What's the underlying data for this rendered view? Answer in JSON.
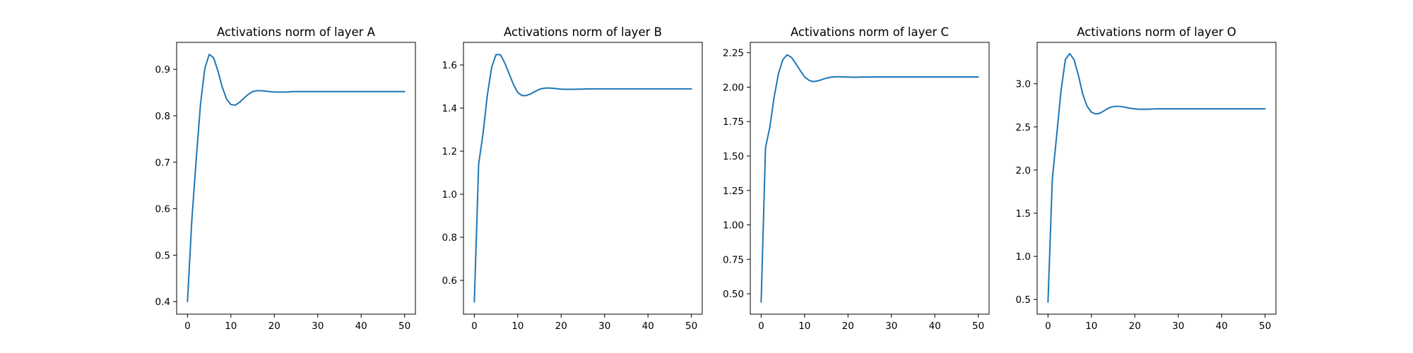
{
  "colors": {
    "background": "#ffffff",
    "series": "#1f77b4",
    "axes": "#000000"
  },
  "chart_data": [
    {
      "type": "line",
      "title": "Activations norm of layer A",
      "xlabel": "",
      "ylabel": "",
      "xlim": [
        -2.5,
        52.5
      ],
      "ylim": [
        0.373,
        0.958
      ],
      "x_ticks": [
        0,
        10,
        20,
        30,
        40,
        50
      ],
      "y_ticks": [
        0.4,
        0.5,
        0.6,
        0.7,
        0.8,
        0.9
      ],
      "y_tick_labels": [
        "0.4",
        "0.5",
        "0.6",
        "0.7",
        "0.8",
        "0.9"
      ],
      "grid": false,
      "series": [
        {
          "x": [
            0,
            1,
            2,
            3,
            4,
            5,
            6,
            7,
            8,
            9,
            10,
            11,
            12,
            13,
            14,
            15,
            16,
            17,
            18,
            19,
            20,
            21,
            22,
            23,
            24,
            25,
            26,
            27,
            28,
            29,
            30,
            31,
            32,
            33,
            34,
            35,
            36,
            37,
            38,
            39,
            40,
            41,
            42,
            43,
            44,
            45,
            46,
            47,
            48,
            49,
            50
          ],
          "y": [
            0.4,
            0.575,
            0.705,
            0.825,
            0.902,
            0.932,
            0.925,
            0.897,
            0.862,
            0.836,
            0.824,
            0.823,
            0.829,
            0.838,
            0.846,
            0.852,
            0.854,
            0.854,
            0.853,
            0.852,
            0.851,
            0.851,
            0.851,
            0.851,
            0.852,
            0.852,
            0.852,
            0.852,
            0.852,
            0.852,
            0.852,
            0.852,
            0.852,
            0.852,
            0.852,
            0.852,
            0.852,
            0.852,
            0.852,
            0.852,
            0.852,
            0.852,
            0.852,
            0.852,
            0.852,
            0.852,
            0.852,
            0.852,
            0.852,
            0.852,
            0.852
          ]
        }
      ]
    },
    {
      "type": "line",
      "title": "Activations norm of layer B",
      "xlabel": "",
      "ylabel": "",
      "xlim": [
        -2.5,
        52.5
      ],
      "ylim": [
        0.443,
        1.705
      ],
      "x_ticks": [
        0,
        10,
        20,
        30,
        40,
        50
      ],
      "y_ticks": [
        0.6,
        0.8,
        1.0,
        1.2,
        1.4,
        1.6
      ],
      "y_tick_labels": [
        "0.6",
        "0.8",
        "1.0",
        "1.2",
        "1.4",
        "1.6"
      ],
      "grid": false,
      "series": [
        {
          "x": [
            0,
            1,
            2,
            3,
            4,
            5,
            6,
            7,
            8,
            9,
            10,
            11,
            12,
            13,
            14,
            15,
            16,
            17,
            18,
            19,
            20,
            21,
            22,
            23,
            24,
            25,
            26,
            27,
            28,
            29,
            30,
            31,
            32,
            33,
            34,
            35,
            36,
            37,
            38,
            39,
            40,
            41,
            42,
            43,
            44,
            45,
            46,
            47,
            48,
            49,
            50
          ],
          "y": [
            0.5,
            1.14,
            1.28,
            1.46,
            1.59,
            1.648,
            1.648,
            1.61,
            1.56,
            1.51,
            1.472,
            1.458,
            1.458,
            1.466,
            1.477,
            1.487,
            1.492,
            1.493,
            1.492,
            1.49,
            1.488,
            1.487,
            1.487,
            1.487,
            1.488,
            1.488,
            1.489,
            1.489,
            1.489,
            1.489,
            1.489,
            1.489,
            1.489,
            1.489,
            1.489,
            1.489,
            1.489,
            1.489,
            1.489,
            1.489,
            1.489,
            1.489,
            1.489,
            1.489,
            1.489,
            1.489,
            1.489,
            1.489,
            1.489,
            1.489,
            1.489
          ]
        }
      ]
    },
    {
      "type": "line",
      "title": "Activations norm of layer C",
      "xlabel": "",
      "ylabel": "",
      "xlim": [
        -2.5,
        52.5
      ],
      "ylim": [
        0.352,
        2.325
      ],
      "x_ticks": [
        0,
        10,
        20,
        30,
        40,
        50
      ],
      "y_ticks": [
        0.5,
        0.75,
        1.0,
        1.25,
        1.5,
        1.75,
        2.0,
        2.25
      ],
      "y_tick_labels": [
        "0.50",
        "0.75",
        "1.00",
        "1.25",
        "1.50",
        "1.75",
        "2.00",
        "2.25"
      ],
      "grid": false,
      "series": [
        {
          "x": [
            0,
            1,
            2,
            3,
            4,
            5,
            6,
            7,
            8,
            9,
            10,
            11,
            12,
            13,
            14,
            15,
            16,
            17,
            18,
            19,
            20,
            21,
            22,
            23,
            24,
            25,
            26,
            27,
            28,
            29,
            30,
            31,
            32,
            33,
            34,
            35,
            36,
            37,
            38,
            39,
            40,
            41,
            42,
            43,
            44,
            45,
            46,
            47,
            48,
            49,
            50
          ],
          "y": [
            0.44,
            1.56,
            1.71,
            1.93,
            2.1,
            2.2,
            2.235,
            2.215,
            2.17,
            2.12,
            2.075,
            2.05,
            2.04,
            2.045,
            2.055,
            2.065,
            2.072,
            2.075,
            2.075,
            2.074,
            2.073,
            2.072,
            2.072,
            2.073,
            2.073,
            2.074,
            2.074,
            2.074,
            2.074,
            2.074,
            2.074,
            2.074,
            2.074,
            2.074,
            2.074,
            2.074,
            2.074,
            2.074,
            2.074,
            2.074,
            2.074,
            2.074,
            2.074,
            2.074,
            2.074,
            2.074,
            2.074,
            2.074,
            2.074,
            2.074,
            2.074
          ]
        }
      ]
    },
    {
      "type": "line",
      "title": "Activations norm of layer O",
      "xlabel": "",
      "ylabel": "",
      "xlim": [
        -2.5,
        52.5
      ],
      "ylim": [
        0.33,
        3.48
      ],
      "x_ticks": [
        0,
        10,
        20,
        30,
        40,
        50
      ],
      "y_ticks": [
        0.5,
        1.0,
        1.5,
        2.0,
        2.5,
        3.0
      ],
      "y_tick_labels": [
        "0.5",
        "1.0",
        "1.5",
        "2.0",
        "2.5",
        "3.0"
      ],
      "grid": false,
      "series": [
        {
          "x": [
            0,
            1,
            2,
            3,
            4,
            5,
            6,
            7,
            8,
            9,
            10,
            11,
            12,
            13,
            14,
            15,
            16,
            17,
            18,
            19,
            20,
            21,
            22,
            23,
            24,
            25,
            26,
            27,
            28,
            29,
            30,
            31,
            32,
            33,
            34,
            35,
            36,
            37,
            38,
            39,
            40,
            41,
            42,
            43,
            44,
            45,
            46,
            47,
            48,
            49,
            50
          ],
          "y": [
            0.47,
            1.9,
            2.4,
            2.92,
            3.28,
            3.35,
            3.28,
            3.1,
            2.88,
            2.74,
            2.67,
            2.65,
            2.66,
            2.69,
            2.72,
            2.735,
            2.74,
            2.735,
            2.725,
            2.715,
            2.71,
            2.705,
            2.705,
            2.705,
            2.708,
            2.71,
            2.71,
            2.71,
            2.71,
            2.71,
            2.71,
            2.71,
            2.71,
            2.71,
            2.71,
            2.71,
            2.71,
            2.71,
            2.71,
            2.71,
            2.71,
            2.71,
            2.71,
            2.71,
            2.71,
            2.71,
            2.71,
            2.71,
            2.71,
            2.71,
            2.71
          ]
        }
      ]
    }
  ]
}
